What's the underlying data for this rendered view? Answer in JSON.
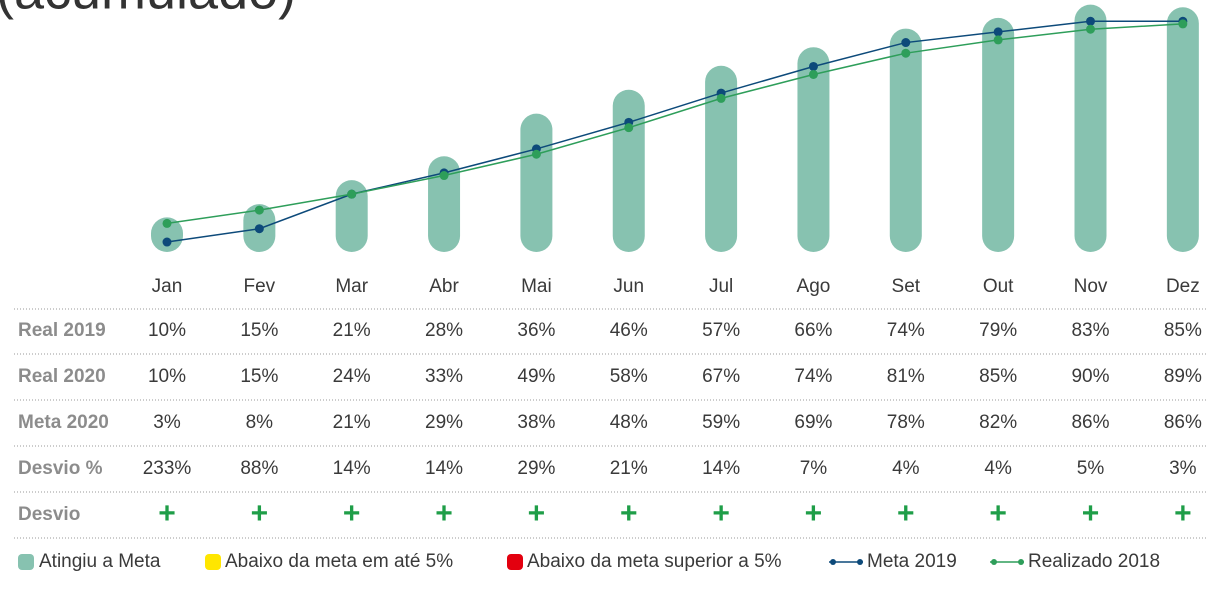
{
  "chart_data": {
    "type": "bar_line",
    "title": "(acumulado)",
    "categories": [
      "Jan",
      "Fev",
      "Mar",
      "Abr",
      "Mai",
      "Jun",
      "Jul",
      "Ago",
      "Set",
      "Out",
      "Nov",
      "Dez"
    ],
    "ylim": [
      0,
      94
    ],
    "series": [
      {
        "name": "Atingiu a Meta",
        "type": "bar",
        "color": "#87c2b0",
        "values": [
          10,
          15,
          24,
          33,
          49,
          58,
          67,
          74,
          81,
          85,
          90,
          89
        ]
      },
      {
        "name": "Meta 2019",
        "type": "line",
        "color": "#0d4a7a",
        "values": [
          3,
          8,
          21,
          29,
          38,
          48,
          59,
          69,
          78,
          82,
          86,
          86
        ]
      },
      {
        "name": "Realizado 2018",
        "type": "line",
        "color": "#2e9e5a",
        "values": [
          10,
          15,
          21,
          28,
          36,
          46,
          57,
          66,
          74,
          79,
          83,
          85
        ]
      }
    ],
    "legend_extra": [
      {
        "name": "Abaixo da meta em até 5%",
        "color": "#ffe600"
      },
      {
        "name": "Abaixo da meta superior a 5%",
        "color": "#e3000f"
      }
    ]
  },
  "table": {
    "rows": [
      {
        "label": "Real 2019",
        "cells": [
          "10%",
          "15%",
          "21%",
          "28%",
          "36%",
          "46%",
          "57%",
          "66%",
          "74%",
          "79%",
          "83%",
          "85%"
        ]
      },
      {
        "label": "Real 2020",
        "cells": [
          "10%",
          "15%",
          "24%",
          "33%",
          "49%",
          "58%",
          "67%",
          "74%",
          "81%",
          "85%",
          "90%",
          "89%"
        ]
      },
      {
        "label": "Meta 2020",
        "cells": [
          "3%",
          "8%",
          "21%",
          "29%",
          "38%",
          "48%",
          "59%",
          "69%",
          "78%",
          "82%",
          "86%",
          "86%"
        ]
      },
      {
        "label": "Desvio %",
        "cells": [
          "233%",
          "88%",
          "14%",
          "14%",
          "29%",
          "21%",
          "14%",
          "7%",
          "4%",
          "4%",
          "5%",
          "3%"
        ]
      },
      {
        "label": "Desvio",
        "cells": [
          "+",
          "+",
          "+",
          "+",
          "+",
          "+",
          "+",
          "+",
          "+",
          "+",
          "+",
          "+"
        ]
      }
    ]
  }
}
